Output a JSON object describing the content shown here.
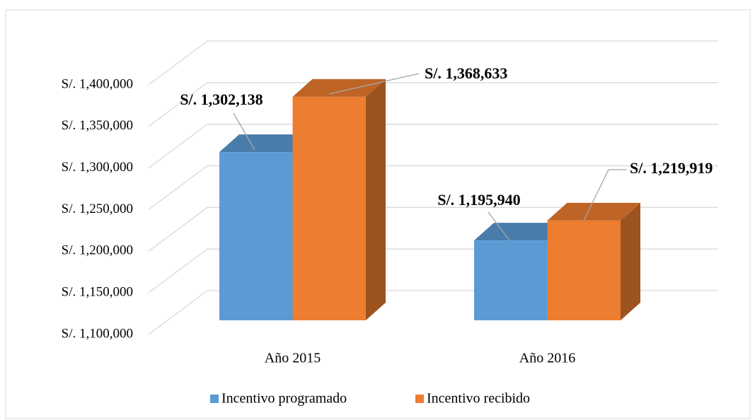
{
  "chart_data": {
    "type": "bar3d",
    "categories": [
      "Año 2015",
      "Año 2016"
    ],
    "series": [
      {
        "name": "Incentivo programado",
        "color": "#5b9bd5",
        "values": [
          1302138,
          1195940
        ],
        "value_labels": [
          "S/. 1,302,138",
          "S/. 1,195,940"
        ]
      },
      {
        "name": "Incentivo recibido",
        "color": "#ed7d31",
        "values": [
          1368633,
          1219919
        ],
        "value_labels": [
          "S/. 1,368,633",
          "S/. 1,219,919"
        ]
      }
    ],
    "ylim": [
      1100000,
      1400000
    ],
    "yticks": [
      {
        "value": 1100000,
        "label": "S/. 1,100,000"
      },
      {
        "value": 1150000,
        "label": "S/. 1,150,000"
      },
      {
        "value": 1200000,
        "label": "S/. 1,200,000"
      },
      {
        "value": 1250000,
        "label": "S/. 1,250,000"
      },
      {
        "value": 1300000,
        "label": "S/. 1,300,000"
      },
      {
        "value": 1350000,
        "label": "S/. 1,350,000"
      },
      {
        "value": 1400000,
        "label": "S/. 1,400,000"
      }
    ],
    "grid": true,
    "legend": "bottom"
  }
}
